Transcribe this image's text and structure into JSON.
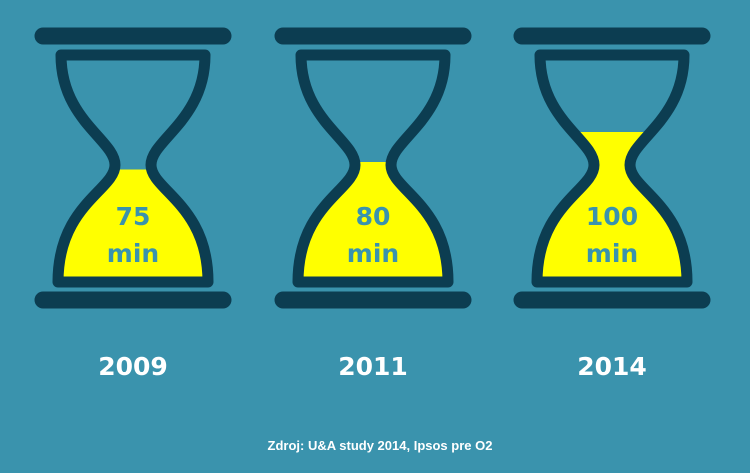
{
  "chart_data": {
    "type": "hourglass",
    "categories": [
      "2009",
      "2011",
      "2014"
    ],
    "values": [
      75,
      80,
      100
    ],
    "value_labels": [
      "75 min",
      "80 min",
      "100 min"
    ],
    "color": "#ffff00",
    "outline_color": "#0c3d51",
    "source": "Zdroj:  U&A study 2014, Ipsos pre O2"
  }
}
